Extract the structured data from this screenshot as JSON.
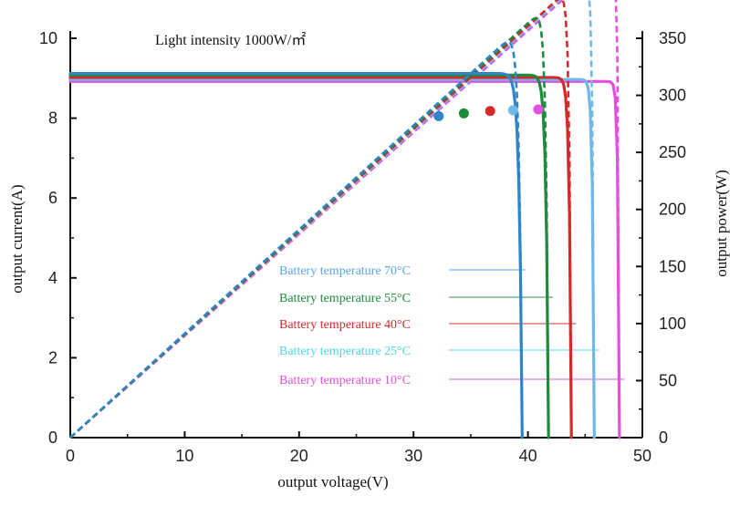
{
  "chart_data": {
    "type": "line",
    "title": "Light intensity 1000W/㎡",
    "xlabel": "output voltage(V)",
    "ylabel": "output current(A)",
    "y2label": "output power(W)",
    "xlim": [
      0,
      50
    ],
    "ylim": [
      0,
      10
    ],
    "y2lim": [
      0,
      350
    ],
    "xticks": [
      0,
      10,
      20,
      30,
      40,
      50
    ],
    "yticks": [
      0,
      2,
      4,
      6,
      8,
      10
    ],
    "y2ticks": [
      0,
      50,
      100,
      150,
      200,
      250,
      300,
      350
    ],
    "grid": false,
    "series": [
      {
        "name": "Battery temperature 70°C",
        "color": "#2e86c8",
        "label_color": "#5aa5e6",
        "isc": 9.12,
        "voc": 39.5,
        "k": 2.2,
        "mpp": {
          "v": 32.2,
          "i": 8.05,
          "p": 259
        },
        "current": [
          [
            0,
            9.12
          ],
          [
            10,
            9.12
          ],
          [
            20,
            9.11
          ],
          [
            25,
            9.08
          ],
          [
            28,
            8.98
          ],
          [
            30,
            8.78
          ],
          [
            32,
            8.1
          ],
          [
            34,
            6.9
          ],
          [
            36,
            5.0
          ],
          [
            38,
            2.7
          ],
          [
            39,
            1.2
          ],
          [
            39.5,
            0
          ]
        ],
        "power": [
          [
            0,
            0
          ],
          [
            10,
            91
          ],
          [
            20,
            182
          ],
          [
            25,
            227
          ],
          [
            28,
            251
          ],
          [
            30,
            263
          ],
          [
            32,
            259
          ],
          [
            34,
            235
          ],
          [
            36,
            180
          ],
          [
            38,
            103
          ],
          [
            39,
            47
          ],
          [
            39.5,
            0
          ]
        ]
      },
      {
        "name": "Battery temperature 55°C",
        "color": "#1e8a3c",
        "label_color": "#1e8a3c",
        "isc": 9.08,
        "voc": 41.8,
        "k": 2.3,
        "mpp": {
          "v": 34.4,
          "i": 8.12,
          "p": 279
        },
        "current": [
          [
            0,
            9.08
          ],
          [
            10,
            9.08
          ],
          [
            20,
            9.07
          ],
          [
            26,
            9.04
          ],
          [
            30,
            8.9
          ],
          [
            32,
            8.7
          ],
          [
            34,
            8.2
          ],
          [
            36,
            7.2
          ],
          [
            38,
            5.6
          ],
          [
            40,
            3.2
          ],
          [
            41,
            1.6
          ],
          [
            41.8,
            0
          ]
        ],
        "power": [
          [
            0,
            0
          ],
          [
            10,
            91
          ],
          [
            20,
            181
          ],
          [
            26,
            235
          ],
          [
            30,
            267
          ],
          [
            32,
            278
          ],
          [
            34,
            279
          ],
          [
            36,
            259
          ],
          [
            38,
            213
          ],
          [
            40,
            128
          ],
          [
            41,
            66
          ],
          [
            41.8,
            0
          ]
        ]
      },
      {
        "name": "Battery temperature 40°C",
        "color": "#d42a2a",
        "label_color": "#d42a2a",
        "isc": 9.02,
        "voc": 43.8,
        "k": 2.4,
        "mpp": {
          "v": 36.7,
          "i": 8.18,
          "p": 300
        },
        "current": [
          [
            0,
            9.02
          ],
          [
            10,
            9.02
          ],
          [
            20,
            9.01
          ],
          [
            28,
            8.98
          ],
          [
            32,
            8.85
          ],
          [
            35,
            8.5
          ],
          [
            37,
            7.9
          ],
          [
            39,
            6.8
          ],
          [
            41,
            5.0
          ],
          [
            42,
            3.8
          ],
          [
            43,
            1.9
          ],
          [
            43.8,
            0
          ]
        ],
        "power": [
          [
            0,
            0
          ],
          [
            10,
            90
          ],
          [
            20,
            180
          ],
          [
            28,
            251
          ],
          [
            32,
            283
          ],
          [
            35,
            298
          ],
          [
            37,
            292
          ],
          [
            39,
            265
          ],
          [
            41,
            205
          ],
          [
            42,
            160
          ],
          [
            43,
            82
          ],
          [
            43.8,
            0
          ]
        ]
      },
      {
        "name": "Battery temperature 25°C",
        "color": "#6fb8e8",
        "label_color": "#4fd6e8",
        "isc": 8.97,
        "voc": 45.8,
        "k": 2.5,
        "mpp": {
          "v": 38.7,
          "i": 8.2,
          "p": 317
        },
        "current": [
          [
            0,
            8.97
          ],
          [
            10,
            8.97
          ],
          [
            20,
            8.96
          ],
          [
            30,
            8.92
          ],
          [
            34,
            8.8
          ],
          [
            37,
            8.5
          ],
          [
            39,
            8.0
          ],
          [
            41,
            7.0
          ],
          [
            43,
            5.2
          ],
          [
            44,
            3.9
          ],
          [
            45,
            2.0
          ],
          [
            45.8,
            0
          ]
        ],
        "power": [
          [
            0,
            0
          ],
          [
            10,
            90
          ],
          [
            20,
            179
          ],
          [
            30,
            268
          ],
          [
            34,
            299
          ],
          [
            37,
            315
          ],
          [
            39,
            312
          ],
          [
            41,
            287
          ],
          [
            43,
            224
          ],
          [
            44,
            172
          ],
          [
            45,
            90
          ],
          [
            45.8,
            0
          ]
        ]
      },
      {
        "name": "Battery temperature 10°C",
        "color": "#e54fe0",
        "label_color": "#e54fe0",
        "isc": 8.92,
        "voc": 48.0,
        "k": 2.6,
        "mpp": {
          "v": 40.9,
          "i": 8.22,
          "p": 336
        },
        "current": [
          [
            0,
            8.92
          ],
          [
            10,
            8.92
          ],
          [
            20,
            8.91
          ],
          [
            30,
            8.9
          ],
          [
            36,
            8.75
          ],
          [
            39,
            8.5
          ],
          [
            41,
            8.1
          ],
          [
            43,
            7.3
          ],
          [
            45,
            5.6
          ],
          [
            46,
            4.2
          ],
          [
            47,
            2.2
          ],
          [
            48,
            0
          ]
        ],
        "power": [
          [
            0,
            0
          ],
          [
            10,
            89
          ],
          [
            20,
            178
          ],
          [
            30,
            267
          ],
          [
            36,
            315
          ],
          [
            39,
            331
          ],
          [
            41,
            332
          ],
          [
            43,
            314
          ],
          [
            45,
            252
          ],
          [
            46,
            193
          ],
          [
            47,
            103
          ],
          [
            48,
            0
          ]
        ]
      }
    ]
  }
}
